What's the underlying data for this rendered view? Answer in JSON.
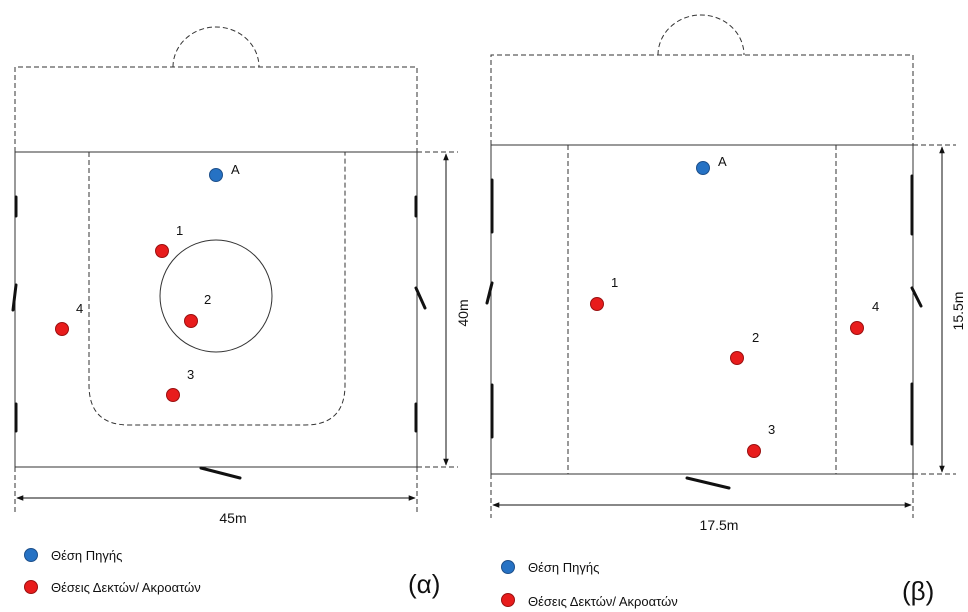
{
  "colors": {
    "source": "#2672c4",
    "receiver": "#e81c1c",
    "line": "#333333"
  },
  "panel_a": {
    "panel_label": "(α)",
    "width_label": "45m",
    "height_label": "40m",
    "source": {
      "label": "A"
    },
    "receivers": [
      {
        "label": "1"
      },
      {
        "label": "2"
      },
      {
        "label": "3"
      },
      {
        "label": "4"
      }
    ],
    "legend": {
      "source_label": "Θέση Πηγής",
      "receiver_label": "Θέσεις Δεκτών/ Ακροατών"
    }
  },
  "panel_b": {
    "panel_label": "(β)",
    "width_label": "17.5m",
    "height_label": "15.5m",
    "source": {
      "label": "A"
    },
    "receivers": [
      {
        "label": "1"
      },
      {
        "label": "2"
      },
      {
        "label": "3"
      },
      {
        "label": "4"
      }
    ],
    "legend": {
      "source_label": "Θέση Πηγής",
      "receiver_label": "Θέσεις Δεκτών/ Ακροατών"
    }
  }
}
